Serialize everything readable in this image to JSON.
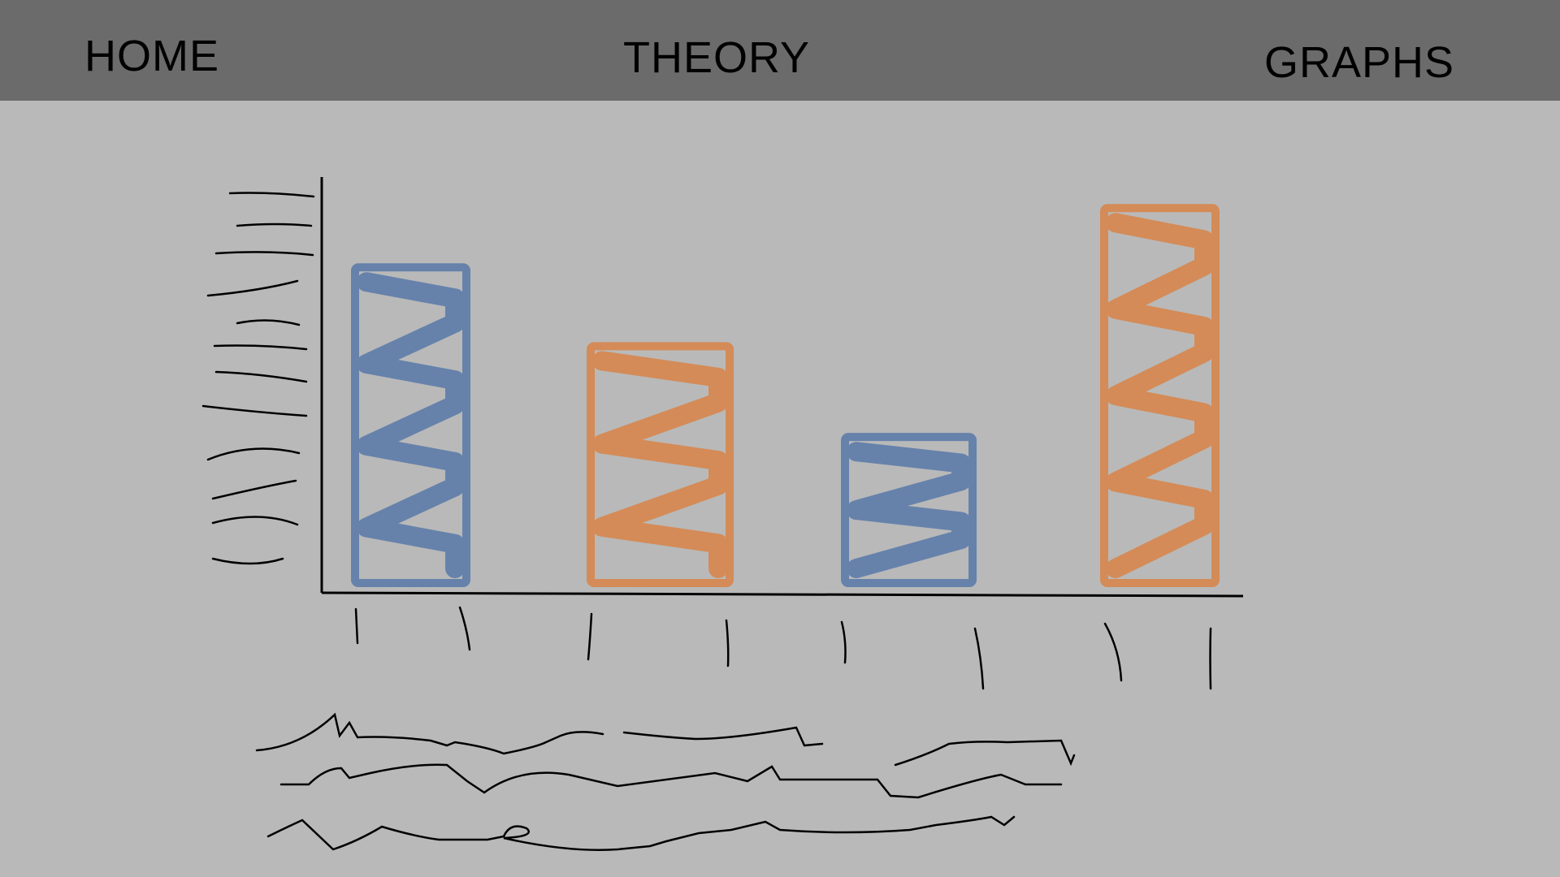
{
  "nav": {
    "home": "HOME",
    "theory": "THEORY",
    "graphs": "GRAPHS"
  },
  "colors": {
    "header": "#6b6b6b",
    "background": "#b9b9b9",
    "blue": "#6682ab",
    "orange": "#d48b57"
  },
  "chart_data": {
    "type": "bar",
    "sketch": true,
    "categories": [
      "",
      "",
      "",
      ""
    ],
    "series": [
      {
        "color": "#6682ab",
        "values": [
          0.8,
          null,
          0.37,
          null
        ]
      },
      {
        "color": "#d48b57",
        "values": [
          null,
          0.6,
          null,
          0.95
        ]
      }
    ],
    "ylim": [
      0,
      1
    ],
    "grid": false,
    "scribbled_y_tick_labels": 12,
    "scribbled_x_tick_labels": 8,
    "scribbled_caption_lines": 3
  }
}
